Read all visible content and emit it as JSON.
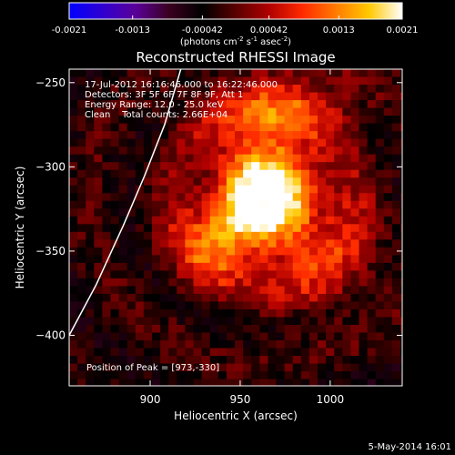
{
  "colorbar": {
    "ticks": [
      "-0.0021",
      "-0.0013",
      "-0.00042",
      "0.00042",
      "0.0013",
      "0.0021"
    ],
    "tick_values": [
      -0.0021,
      -0.0013,
      -0.00042,
      0.00042,
      0.0013,
      0.0021
    ],
    "range": [
      -0.0021,
      0.0021
    ],
    "units_text": "(photons cm",
    "units_exp1": "-2",
    "units_mid": " s",
    "units_exp2": "-1",
    "units_end": " asec",
    "units_exp3": "-2",
    "units_close": ")",
    "colormap": [
      "#0000ff",
      "#3000d0",
      "#5a0098",
      "#3a0020",
      "#000000",
      "#5a0000",
      "#b00000",
      "#ff2a00",
      "#ff7a00",
      "#ffc800",
      "#ffffff"
    ]
  },
  "chart_data": {
    "type": "heatmap",
    "title": "Reconstructed RHESSI Image",
    "xlabel": "Heliocentric X (arcsec)",
    "ylabel": "Heliocentric Y (arcsec)",
    "xlim": [
      855,
      1040
    ],
    "ylim": [
      -430,
      -242
    ],
    "x_ticks": [
      900,
      950,
      1000
    ],
    "y_ticks": [
      -250,
      -300,
      -350,
      -400
    ],
    "grid": false,
    "info_lines": [
      "17-Jul-2012 16:16:46.000 to 16:22:46.000",
      "Detectors: 3F 5F 6F 7F 8F 9F, Att 1",
      "Energy Range: 12.0 - 25.0 keV",
      "Clean    Total counts: 2.66E+04"
    ],
    "peak_label": "Position of Peak = [973,-330]",
    "peak": [
      973,
      -330
    ],
    "sources": [
      {
        "x": 963,
        "y": -312,
        "sigma_x": 20,
        "sigma_y": 26,
        "amplitude": 1.0
      },
      {
        "x": 935,
        "y": -345,
        "sigma_x": 14,
        "sigma_y": 16,
        "amplitude": 0.65
      },
      {
        "x": 975,
        "y": -262,
        "sigma_x": 30,
        "sigma_y": 16,
        "amplitude": 0.4
      },
      {
        "x": 995,
        "y": -350,
        "sigma_x": 22,
        "sigma_y": 26,
        "amplitude": 0.35
      }
    ],
    "limb_curve": [
      [
        855,
        -400
      ],
      [
        870,
        -370
      ],
      [
        885,
        -335
      ],
      [
        897,
        -305
      ],
      [
        908,
        -275
      ],
      [
        917,
        -242
      ]
    ],
    "timestamp": "5-May-2014 16:01"
  }
}
